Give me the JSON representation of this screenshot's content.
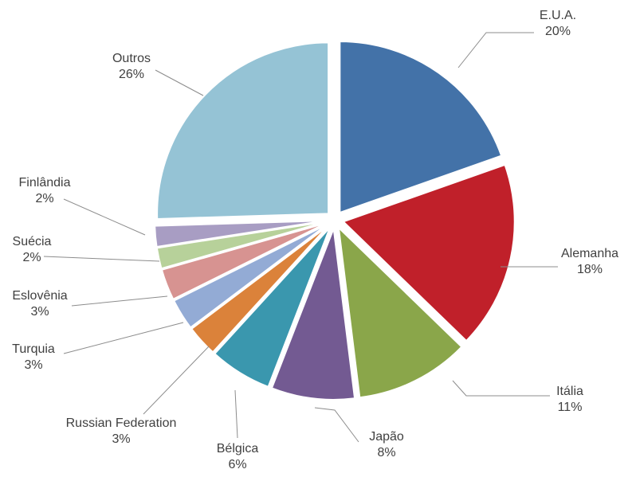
{
  "chart_data": {
    "type": "pie",
    "title": "",
    "legend": "none",
    "categories": [
      "E.U.A.",
      "Alemanha",
      "Itália",
      "Japão",
      "Bélgica",
      "Russian Federation",
      "Turquia",
      "Eslovênia",
      "Suécia",
      "Finlândia",
      "Outros"
    ],
    "values": [
      20,
      18,
      11,
      8,
      6,
      3,
      3,
      3,
      2,
      2,
      26
    ],
    "value_labels": [
      "20%",
      "18%",
      "11%",
      "8%",
      "6%",
      "3%",
      "3%",
      "3%",
      "2%",
      "2%",
      "26%"
    ],
    "colors": [
      "#4372A8",
      "#C0202A",
      "#8AA64A",
      "#735A92",
      "#3A97AE",
      "#DB823A",
      "#93ABD5",
      "#D79391",
      "#B7D19A",
      "#A89DC3",
      "#95C3D5"
    ],
    "exploded": true
  }
}
